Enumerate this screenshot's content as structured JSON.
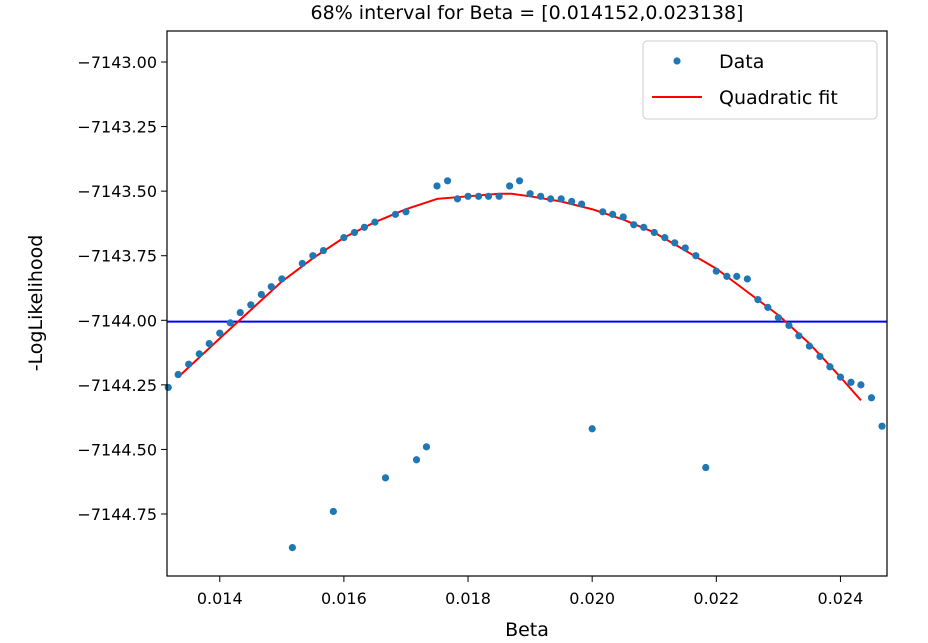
{
  "chart_data": {
    "type": "scatter",
    "title": "68% interval for Beta = [0.014152,0.023138]",
    "xlabel": "Beta",
    "ylabel": "-LogLikelihood",
    "xlim": [
      0.01315,
      0.02475
    ],
    "ylim": [
      -7144.99,
      -7142.88
    ],
    "xticks": [
      0.014,
      0.016,
      0.018,
      0.02,
      0.022,
      0.024
    ],
    "xtick_labels": [
      "0.014",
      "0.016",
      "0.018",
      "0.020",
      "0.022",
      "0.024"
    ],
    "yticks": [
      -7143.0,
      -7143.25,
      -7143.5,
      -7143.75,
      -7144.0,
      -7144.25,
      -7144.5,
      -7144.75
    ],
    "ytick_labels": [
      "−7143.00",
      "−7143.25",
      "−7143.50",
      "−7143.75",
      "−7144.00",
      "−7144.25",
      "−7144.50",
      "−7144.75"
    ],
    "legend_position": "top-right",
    "series": [
      {
        "name": "Data",
        "kind": "points",
        "color": "#1f77b4",
        "points": [
          [
            0.01317,
            -7144.26
          ],
          [
            0.01333,
            -7144.21
          ],
          [
            0.0135,
            -7144.17
          ],
          [
            0.01367,
            -7144.13
          ],
          [
            0.01383,
            -7144.09
          ],
          [
            0.014,
            -7144.05
          ],
          [
            0.01417,
            -7144.01
          ],
          [
            0.01433,
            -7143.97
          ],
          [
            0.0145,
            -7143.94
          ],
          [
            0.01467,
            -7143.9
          ],
          [
            0.01483,
            -7143.87
          ],
          [
            0.015,
            -7143.84
          ],
          [
            0.01517,
            -7144.88
          ],
          [
            0.01533,
            -7143.78
          ],
          [
            0.0155,
            -7143.75
          ],
          [
            0.01567,
            -7143.73
          ],
          [
            0.01583,
            -7144.74
          ],
          [
            0.016,
            -7143.68
          ],
          [
            0.01617,
            -7143.66
          ],
          [
            0.01633,
            -7143.64
          ],
          [
            0.0165,
            -7143.62
          ],
          [
            0.01667,
            -7144.61
          ],
          [
            0.01683,
            -7143.59
          ],
          [
            0.017,
            -7143.58
          ],
          [
            0.01717,
            -7144.54
          ],
          [
            0.01733,
            -7144.49
          ],
          [
            0.0175,
            -7143.48
          ],
          [
            0.01767,
            -7143.46
          ],
          [
            0.01783,
            -7143.53
          ],
          [
            0.018,
            -7143.52
          ],
          [
            0.01817,
            -7143.52
          ],
          [
            0.01833,
            -7143.52
          ],
          [
            0.0185,
            -7143.52
          ],
          [
            0.01867,
            -7143.48
          ],
          [
            0.01883,
            -7143.46
          ],
          [
            0.019,
            -7143.51
          ],
          [
            0.01917,
            -7143.52
          ],
          [
            0.01933,
            -7143.53
          ],
          [
            0.0195,
            -7143.53
          ],
          [
            0.01967,
            -7143.54
          ],
          [
            0.01983,
            -7143.55
          ],
          [
            0.02,
            -7144.42
          ],
          [
            0.02017,
            -7143.58
          ],
          [
            0.02033,
            -7143.59
          ],
          [
            0.0205,
            -7143.6
          ],
          [
            0.02067,
            -7143.63
          ],
          [
            0.02083,
            -7143.64
          ],
          [
            0.021,
            -7143.66
          ],
          [
            0.02117,
            -7143.68
          ],
          [
            0.02133,
            -7143.7
          ],
          [
            0.0215,
            -7143.72
          ],
          [
            0.02167,
            -7143.75
          ],
          [
            0.02183,
            -7144.57
          ],
          [
            0.022,
            -7143.81
          ],
          [
            0.02217,
            -7143.83
          ],
          [
            0.02233,
            -7143.83
          ],
          [
            0.0225,
            -7143.84
          ],
          [
            0.02267,
            -7143.92
          ],
          [
            0.02283,
            -7143.95
          ],
          [
            0.023,
            -7143.99
          ],
          [
            0.02317,
            -7144.02
          ],
          [
            0.02333,
            -7144.06
          ],
          [
            0.0235,
            -7144.1
          ],
          [
            0.02367,
            -7144.14
          ],
          [
            0.02383,
            -7144.18
          ],
          [
            0.024,
            -7144.22
          ],
          [
            0.02417,
            -7144.24
          ],
          [
            0.02433,
            -7144.25
          ],
          [
            0.0245,
            -7144.3
          ],
          [
            0.02467,
            -7144.41
          ]
        ]
      },
      {
        "name": "Quadratic fit",
        "kind": "line",
        "color": "#ff0000",
        "x": [
          0.01333,
          0.014,
          0.0145,
          0.015,
          0.0155,
          0.016,
          0.0165,
          0.017,
          0.0175,
          0.018,
          0.0185,
          0.0187,
          0.019,
          0.0195,
          0.02,
          0.0205,
          0.021,
          0.0215,
          0.022,
          0.0225,
          0.023,
          0.0235,
          0.024,
          0.02433
        ],
        "y": [
          -7144.22,
          -7144.07,
          -7143.96,
          -7143.85,
          -7143.76,
          -7143.68,
          -7143.62,
          -7143.57,
          -7143.53,
          -7143.52,
          -7143.51,
          -7143.51,
          -7143.52,
          -7143.54,
          -7143.57,
          -7143.61,
          -7143.66,
          -7143.73,
          -7143.8,
          -7143.89,
          -7143.98,
          -7144.09,
          -7144.22,
          -7144.31
        ]
      }
    ],
    "hlines": [
      {
        "y": -7144.005,
        "color": "#0000ff"
      }
    ]
  }
}
